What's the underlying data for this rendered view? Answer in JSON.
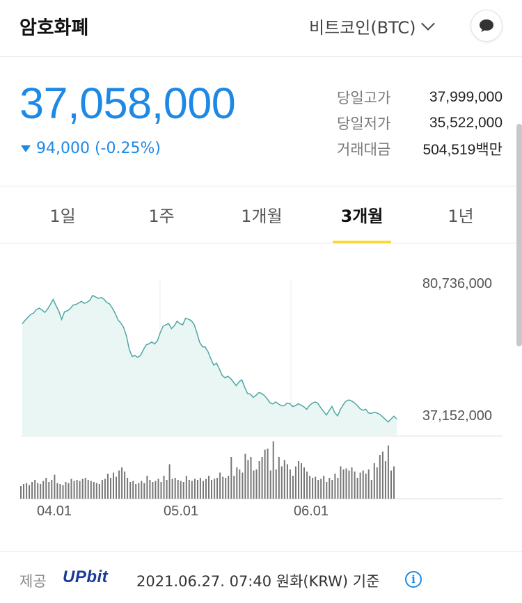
{
  "header": {
    "title": "암호화폐",
    "coin_selector": "비트코인(BTC)",
    "icons": {
      "dropdown": "chevron-down-icon",
      "chat": "chat-bubble-icon"
    }
  },
  "price": {
    "current": "37,058,000",
    "change": "94,000 (-0.25%)",
    "direction": "down",
    "color": "#1e88e5"
  },
  "stats": [
    {
      "label": "당일고가",
      "value": "37,999,000"
    },
    {
      "label": "당일저가",
      "value": "35,522,000"
    },
    {
      "label": "거래대금",
      "value": "504,519백만"
    }
  ],
  "tabs": [
    {
      "label": "1일",
      "active": false
    },
    {
      "label": "1주",
      "active": false
    },
    {
      "label": "1개월",
      "active": false
    },
    {
      "label": "3개월",
      "active": true
    },
    {
      "label": "1년",
      "active": false
    }
  ],
  "chart_data": {
    "type": "area",
    "y_labels": {
      "max": "80,736,000",
      "min": "37,152,000"
    },
    "ylim": [
      37152000,
      80736000
    ],
    "x_ticks": [
      "04.01",
      "05.01",
      "06.01"
    ],
    "prices": [
      66.2,
      67.8,
      69.1,
      70.4,
      71.0,
      72.5,
      73.2,
      72.4,
      71.3,
      72.8,
      74.9,
      77.1,
      74.3,
      71.8,
      68.2,
      71.6,
      72.0,
      72.9,
      74.5,
      74.8,
      75.5,
      76.2,
      75.3,
      75.8,
      76.7,
      78.8,
      78.2,
      77.5,
      77.9,
      77.2,
      75.7,
      75.1,
      73.2,
      70.9,
      68.0,
      66.6,
      64.7,
      60.8,
      55.0,
      51.8,
      52.2,
      51.4,
      52.2,
      54.7,
      56.9,
      57.4,
      58.2,
      57.3,
      58.8,
      62.3,
      65.2,
      65.8,
      66.4,
      64.1,
      65.4,
      67.4,
      66.3,
      65.8,
      68.7,
      68.3,
      67.7,
      66.1,
      62.4,
      58.1,
      56.1,
      55.9,
      53.8,
      50.7,
      47.9,
      48.8,
      46.2,
      43.4,
      42.3,
      43.0,
      42.0,
      40.4,
      38.8,
      40.5,
      41.4,
      38.1,
      35.4,
      35.1,
      33.6,
      34.5,
      35.8,
      35.4,
      34.4,
      33.0,
      31.2,
      30.7,
      31.6,
      30.7,
      29.9,
      29.9,
      31.0,
      30.9,
      29.6,
      29.9,
      30.8,
      30.2,
      29.5,
      28.3,
      30.0,
      31.0,
      31.6,
      31.0,
      29.0,
      27.5,
      25.8,
      27.7,
      29.6,
      26.8,
      25.4,
      28.3,
      30.3,
      32.0,
      32.5,
      32.0,
      31.2,
      30.0,
      28.6,
      27.9,
      28.4,
      26.7,
      26.5,
      27.0,
      26.7,
      26.1,
      25.0,
      23.8,
      22.7,
      24.0,
      25.3,
      24.0
    ],
    "volumes": [
      12,
      14,
      15,
      13,
      16,
      18,
      15,
      14,
      17,
      20,
      16,
      18,
      23,
      15,
      14,
      13,
      16,
      15,
      19,
      17,
      18,
      17,
      19,
      20,
      18,
      17,
      16,
      15,
      14,
      18,
      19,
      24,
      20,
      25,
      21,
      27,
      30,
      26,
      20,
      16,
      17,
      14,
      15,
      17,
      15,
      22,
      18,
      16,
      17,
      19,
      16,
      22,
      18,
      33,
      19,
      20,
      18,
      17,
      16,
      22,
      18,
      17,
      19,
      18,
      20,
      17,
      19,
      22,
      18,
      19,
      20,
      25,
      21,
      20,
      22,
      40,
      22,
      30,
      28,
      25,
      43,
      37,
      40,
      27,
      28,
      36,
      40,
      47,
      48,
      27,
      55,
      28,
      40,
      31,
      37,
      33,
      28,
      22,
      31,
      36,
      34,
      30,
      26,
      22,
      20,
      21,
      18,
      19,
      22,
      16,
      20,
      18,
      24,
      20,
      31,
      28,
      29,
      27,
      30,
      26,
      20,
      25,
      27,
      24,
      28,
      18,
      34,
      30,
      42,
      45,
      36,
      51,
      27,
      31
    ]
  },
  "footer": {
    "provider_label": "제공",
    "provider_logo": "UPbit",
    "timestamp": "2021.06.27. 07:40 원화(KRW) 기준",
    "info_icon": "info-icon"
  }
}
